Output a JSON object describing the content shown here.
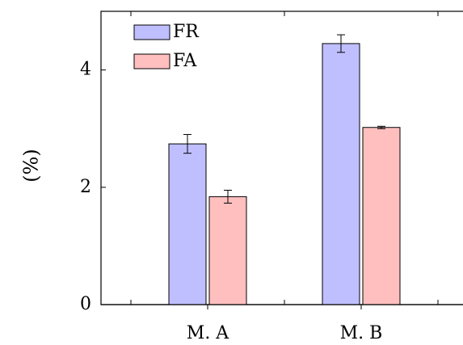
{
  "chart_data": {
    "type": "bar",
    "title": "",
    "xlabel": "",
    "ylabel": "(%)",
    "ylim": [
      0,
      5
    ],
    "yticks": [
      0,
      2,
      4
    ],
    "categories": [
      "M. A",
      "M. B"
    ],
    "series": [
      {
        "name": "FR",
        "color": "#bfbfff",
        "values": [
          2.74,
          4.45
        ],
        "errors": [
          0.16,
          0.15
        ]
      },
      {
        "name": "FA",
        "color": "#ffbfbf",
        "values": [
          1.84,
          3.02
        ],
        "errors": [
          0.11,
          0.02
        ]
      }
    ],
    "grid": false,
    "legend_position": "top-left"
  }
}
